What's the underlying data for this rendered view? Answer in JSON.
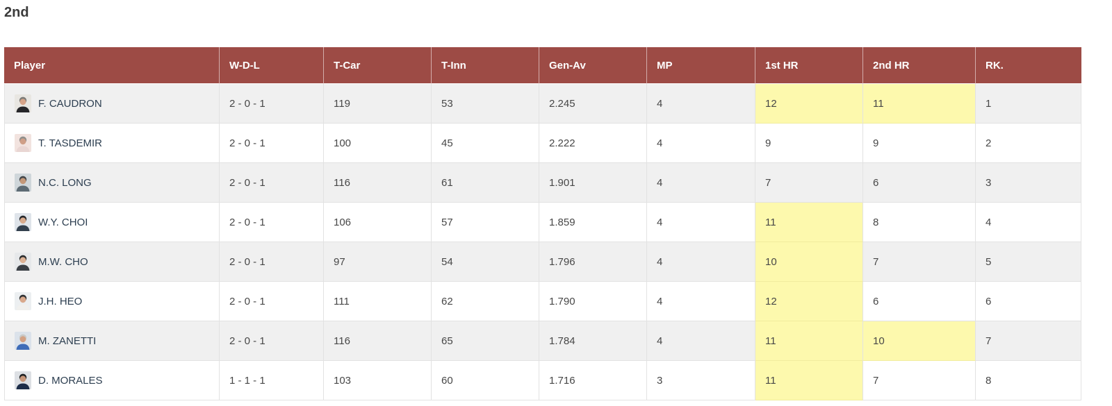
{
  "page": {
    "title": "2nd"
  },
  "colors": {
    "header_bg": "#9d4b45",
    "header_text": "#ffffff",
    "row_stripe": "#f0f0f0",
    "row_white": "#ffffff",
    "highlight": "#fdf9ad",
    "player_name": "#2c3e50",
    "cell_text": "#474747",
    "border": "#e2e2e2"
  },
  "table": {
    "columns": [
      "Player",
      "W-D-L",
      "T-Car",
      "T-Inn",
      "Gen-Av",
      "MP",
      "1st HR",
      "2nd HR",
      "RK."
    ],
    "rows": [
      {
        "player": "F. CAUDRON",
        "wdl": "2 - 0 - 1",
        "t_car": "119",
        "t_inn": "53",
        "gen_av": "2.245",
        "mp": "4",
        "hr1": "12",
        "hr1_highlight": true,
        "hr2": "11",
        "hr2_highlight": true,
        "rk": "1",
        "avatar": {
          "bg": "#e8e6e2",
          "hair": "#7d7d79",
          "skin": "#d7a489",
          "shirt": "#26262a"
        }
      },
      {
        "player": "T. TASDEMIR",
        "wdl": "2 - 0 - 1",
        "t_car": "100",
        "t_inn": "45",
        "gen_av": "2.222",
        "mp": "4",
        "hr1": "9",
        "hr1_highlight": false,
        "hr2": "9",
        "hr2_highlight": false,
        "rk": "2",
        "avatar": {
          "bg": "#f2e3df",
          "hair": "#8f8f8b",
          "skin": "#cf9f87",
          "shirt": "#e9d6d3"
        }
      },
      {
        "player": "N.C. LONG",
        "wdl": "2 - 0 - 1",
        "t_car": "116",
        "t_inn": "61",
        "gen_av": "1.901",
        "mp": "4",
        "hr1": "7",
        "hr1_highlight": false,
        "hr2": "6",
        "hr2_highlight": false,
        "rk": "3",
        "avatar": {
          "bg": "#cfd6da",
          "hair": "#43474b",
          "skin": "#c49879",
          "shirt": "#5d6b74"
        }
      },
      {
        "player": "W.Y. CHOI",
        "wdl": "2 - 0 - 1",
        "t_car": "106",
        "t_inn": "57",
        "gen_av": "1.859",
        "mp": "4",
        "hr1": "11",
        "hr1_highlight": true,
        "hr2": "8",
        "hr2_highlight": false,
        "rk": "4",
        "avatar": {
          "bg": "#dfe4ea",
          "hair": "#26282c",
          "skin": "#d8ab8d",
          "shirt": "#33404e"
        }
      },
      {
        "player": "M.W. CHO",
        "wdl": "2 - 0 - 1",
        "t_car": "97",
        "t_inn": "54",
        "gen_av": "1.796",
        "mp": "4",
        "hr1": "10",
        "hr1_highlight": true,
        "hr2": "7",
        "hr2_highlight": false,
        "rk": "5",
        "avatar": {
          "bg": "#e6e8ea",
          "hair": "#2b2d2f",
          "skin": "#dcb295",
          "shirt": "#3a3f45"
        }
      },
      {
        "player": "J.H. HEO",
        "wdl": "2 - 0 - 1",
        "t_car": "111",
        "t_inn": "62",
        "gen_av": "1.790",
        "mp": "4",
        "hr1": "12",
        "hr1_highlight": true,
        "hr2": "6",
        "hr2_highlight": false,
        "rk": "6",
        "avatar": {
          "bg": "#eceff1",
          "hair": "#303234",
          "skin": "#d9a98c",
          "shirt": "#f0f0ee"
        }
      },
      {
        "player": "M. ZANETTI",
        "wdl": "2 - 0 - 1",
        "t_car": "116",
        "t_inn": "65",
        "gen_av": "1.784",
        "mp": "4",
        "hr1": "11",
        "hr1_highlight": true,
        "hr2": "10",
        "hr2_highlight": true,
        "rk": "7",
        "avatar": {
          "bg": "#dbe2ea",
          "hair": "#c9c9c7",
          "skin": "#d3a184",
          "shirt": "#3e6cb8"
        }
      },
      {
        "player": "D. MORALES",
        "wdl": "1 - 1 - 1",
        "t_car": "103",
        "t_inn": "60",
        "gen_av": "1.716",
        "mp": "3",
        "hr1": "11",
        "hr1_highlight": true,
        "hr2": "7",
        "hr2_highlight": false,
        "rk": "8",
        "avatar": {
          "bg": "#dde0e4",
          "hair": "#1f2123",
          "skin": "#c8977a",
          "shirt": "#1d2d49"
        }
      }
    ]
  }
}
